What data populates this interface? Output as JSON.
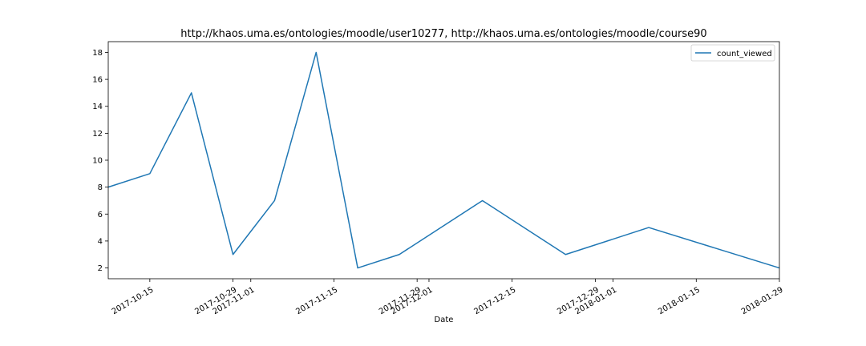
{
  "chart_data": {
    "type": "line",
    "title": "http://khaos.uma.es/ontologies/moodle/user10277, http://khaos.uma.es/ontologies/moodle/course90",
    "xlabel": "Date",
    "ylabel": "",
    "xlim": [
      "2017-10-08",
      "2018-01-29"
    ],
    "ylim": [
      1.2,
      18.8
    ],
    "yticks": [
      2,
      4,
      6,
      8,
      10,
      12,
      14,
      16,
      18
    ],
    "xticks": [
      "2017-10-15",
      "2017-10-29",
      "2017-11-01",
      "2017-11-15",
      "2017-11-29",
      "2017-12-01",
      "2017-12-15",
      "2017-12-29",
      "2018-01-01",
      "2018-01-15",
      "2018-01-29"
    ],
    "grid": false,
    "legend_position": "top-right",
    "series": [
      {
        "name": "count_viewed",
        "color": "#1f77b4",
        "x": [
          "2017-10-08",
          "2017-10-15",
          "2017-10-22",
          "2017-10-29",
          "2017-11-05",
          "2017-11-12",
          "2017-11-19",
          "2017-11-26",
          "2017-12-10",
          "2017-12-24",
          "2018-01-07",
          "2018-01-29"
        ],
        "y": [
          8,
          9,
          15,
          3,
          7,
          18,
          2,
          3,
          7,
          3,
          5,
          2
        ]
      }
    ]
  }
}
